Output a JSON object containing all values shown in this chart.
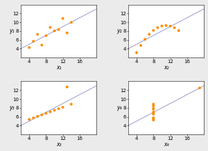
{
  "datasets": {
    "I": {
      "x": [
        10,
        8,
        13,
        9,
        11,
        14,
        6,
        4,
        12,
        7,
        5
      ],
      "y": [
        8.04,
        6.95,
        7.58,
        8.81,
        8.33,
        9.96,
        7.24,
        4.26,
        10.84,
        4.82,
        5.68
      ]
    },
    "II": {
      "x": [
        10,
        8,
        13,
        9,
        11,
        14,
        6,
        4,
        12,
        7,
        5
      ],
      "y": [
        9.14,
        8.14,
        8.74,
        8.77,
        9.26,
        8.1,
        6.13,
        3.1,
        9.13,
        7.26,
        4.74
      ]
    },
    "III": {
      "x": [
        10,
        8,
        13,
        9,
        11,
        14,
        6,
        4,
        12,
        7,
        5
      ],
      "y": [
        7.46,
        6.77,
        12.74,
        7.11,
        7.81,
        8.84,
        6.08,
        5.39,
        8.15,
        6.42,
        5.73
      ]
    },
    "IV": {
      "x": [
        8,
        8,
        8,
        8,
        8,
        8,
        8,
        19,
        8,
        8,
        8
      ],
      "y": [
        6.58,
        5.76,
        7.71,
        8.84,
        8.47,
        7.04,
        5.25,
        12.5,
        5.56,
        7.91,
        6.89
      ]
    }
  },
  "xlabels": [
    "x₁",
    "x₂",
    "x₃",
    "x₄"
  ],
  "ylabels": [
    "y₁",
    "y₂",
    "y₃",
    "y₄"
  ],
  "dot_color": "#FF8C00",
  "line_color": "#9999CC",
  "xlim": [
    2,
    20
  ],
  "ylim": [
    2,
    14
  ],
  "xticks": [
    4,
    8,
    12,
    16
  ],
  "yticks": [
    4,
    6,
    8,
    10,
    12
  ],
  "bg_color": "#ebebeb",
  "label_fontsize": 5.5,
  "tick_fontsize": 5,
  "dot_size": 8,
  "line_width": 0.7,
  "slope": 0.5,
  "intercept": 3.0
}
